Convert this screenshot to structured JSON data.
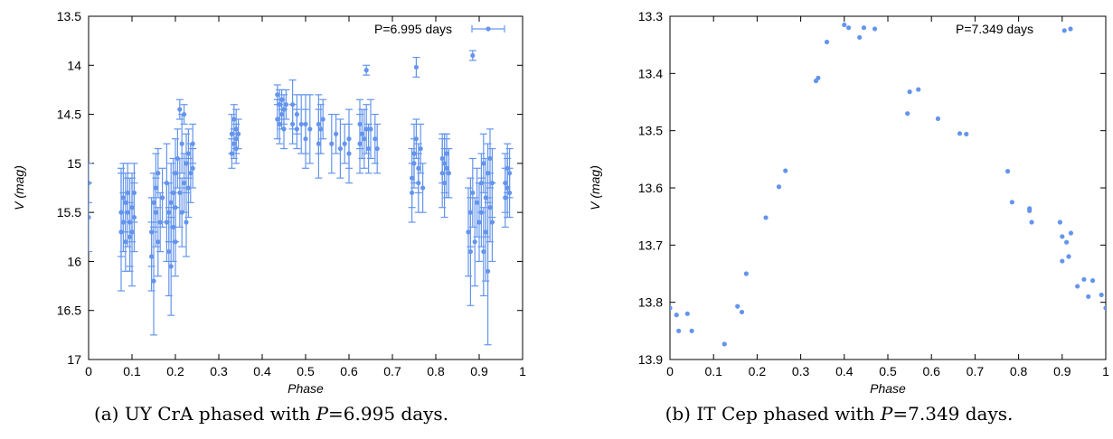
{
  "colors": {
    "series": "#6495ed",
    "axis": "#000000",
    "background": "#ffffff"
  },
  "chart_data": [
    {
      "type": "scatter",
      "panel": "a",
      "xlabel": "Phase",
      "ylabel": "V (mag)",
      "xlim": [
        0,
        1
      ],
      "ylim": [
        13.5,
        17
      ],
      "y_inverted": true,
      "xticks": [
        "0",
        "0.1",
        "0.2",
        "0.3",
        "0.4",
        "0.5",
        "0.6",
        "0.7",
        "0.8",
        "0.9",
        "1"
      ],
      "yticks": [
        "13.5",
        "14",
        "14.5",
        "15",
        "15.5",
        "16",
        "16.5",
        "17"
      ],
      "legend": {
        "label": "P=6.995 days",
        "position": "top-right"
      },
      "caption": {
        "prefix": "(a) UY CrA phased with ",
        "var": "P",
        "suffix": "=6.995 days."
      },
      "series": [
        {
          "name": "P=6.995 days",
          "points": [
            [
              0.0,
              15.55,
              0.35
            ],
            [
              0.0,
              15.2,
              0.2
            ],
            [
              0.075,
              15.5,
              0.45
            ],
            [
              0.075,
              15.7,
              0.6
            ],
            [
              0.08,
              15.35,
              0.35
            ],
            [
              0.08,
              15.6,
              0.3
            ],
            [
              0.085,
              15.4,
              0.3
            ],
            [
              0.085,
              15.8,
              0.3
            ],
            [
              0.09,
              15.5,
              0.35
            ],
            [
              0.09,
              15.3,
              0.3
            ],
            [
              0.095,
              15.6,
              0.45
            ],
            [
              0.095,
              15.75,
              0.35
            ],
            [
              0.1,
              15.45,
              0.35
            ],
            [
              0.1,
              15.7,
              0.55
            ],
            [
              0.105,
              15.55,
              0.35
            ],
            [
              0.105,
              15.3,
              0.3
            ],
            [
              0.145,
              15.95,
              0.35
            ],
            [
              0.145,
              15.7,
              0.35
            ],
            [
              0.15,
              15.4,
              0.3
            ],
            [
              0.15,
              16.2,
              0.55
            ],
            [
              0.155,
              15.5,
              0.35
            ],
            [
              0.155,
              15.25,
              0.35
            ],
            [
              0.16,
              15.8,
              0.35
            ],
            [
              0.16,
              15.1,
              0.25
            ],
            [
              0.165,
              15.6,
              0.3
            ],
            [
              0.17,
              15.35,
              0.3
            ],
            [
              0.18,
              15.6,
              0.4
            ],
            [
              0.18,
              15.2,
              0.4
            ],
            [
              0.185,
              15.9,
              0.45
            ],
            [
              0.185,
              15.5,
              0.3
            ],
            [
              0.19,
              15.4,
              0.4
            ],
            [
              0.19,
              16.05,
              0.5
            ],
            [
              0.195,
              15.65,
              0.35
            ],
            [
              0.195,
              15.3,
              0.35
            ],
            [
              0.2,
              15.1,
              0.35
            ],
            [
              0.2,
              15.8,
              0.35
            ],
            [
              0.2,
              15.45,
              0.35
            ],
            [
              0.205,
              14.95,
              0.3
            ],
            [
              0.21,
              14.45,
              0.1
            ],
            [
              0.21,
              15.3,
              0.35
            ],
            [
              0.215,
              14.8,
              0.3
            ],
            [
              0.215,
              15.5,
              0.35
            ],
            [
              0.22,
              14.5,
              0.1
            ],
            [
              0.22,
              15.2,
              0.3
            ],
            [
              0.225,
              15.6,
              0.35
            ],
            [
              0.225,
              15.0,
              0.3
            ],
            [
              0.23,
              15.25,
              0.3
            ],
            [
              0.23,
              14.9,
              0.25
            ],
            [
              0.235,
              15.1,
              0.3
            ],
            [
              0.24,
              14.8,
              0.2
            ],
            [
              0.24,
              15.05,
              0.2
            ],
            [
              0.33,
              14.7,
              0.2
            ],
            [
              0.33,
              14.9,
              0.15
            ],
            [
              0.335,
              14.55,
              0.15
            ],
            [
              0.335,
              14.8,
              0.15
            ],
            [
              0.34,
              14.65,
              0.2
            ],
            [
              0.34,
              14.75,
              0.15
            ],
            [
              0.34,
              14.85,
              0.15
            ],
            [
              0.345,
              14.7,
              0.15
            ],
            [
              0.435,
              14.3,
              0.1
            ],
            [
              0.435,
              14.55,
              0.2
            ],
            [
              0.44,
              14.4,
              0.15
            ],
            [
              0.44,
              14.6,
              0.2
            ],
            [
              0.445,
              14.35,
              0.1
            ],
            [
              0.445,
              14.5,
              0.15
            ],
            [
              0.45,
              14.45,
              0.15
            ],
            [
              0.45,
              14.65,
              0.2
            ],
            [
              0.455,
              14.4,
              0.15
            ],
            [
              0.47,
              14.4,
              0.25
            ],
            [
              0.47,
              14.6,
              0.2
            ],
            [
              0.48,
              14.5,
              0.2
            ],
            [
              0.48,
              14.65,
              0.2
            ],
            [
              0.49,
              14.6,
              0.3
            ],
            [
              0.5,
              14.75,
              0.3
            ],
            [
              0.5,
              14.6,
              0.3
            ],
            [
              0.51,
              14.65,
              0.35
            ],
            [
              0.53,
              14.6,
              0.3
            ],
            [
              0.53,
              14.8,
              0.35
            ],
            [
              0.535,
              14.65,
              0.25
            ],
            [
              0.54,
              14.55,
              0.2
            ],
            [
              0.56,
              14.8,
              0.3
            ],
            [
              0.57,
              14.7,
              0.2
            ],
            [
              0.58,
              14.85,
              0.3
            ],
            [
              0.59,
              14.8,
              0.2
            ],
            [
              0.6,
              14.75,
              0.3
            ],
            [
              0.6,
              14.9,
              0.3
            ],
            [
              0.625,
              14.6,
              0.25
            ],
            [
              0.625,
              14.8,
              0.3
            ],
            [
              0.63,
              14.7,
              0.25
            ],
            [
              0.635,
              14.75,
              0.3
            ],
            [
              0.64,
              14.65,
              0.25
            ],
            [
              0.64,
              14.05,
              0.05
            ],
            [
              0.645,
              14.85,
              0.25
            ],
            [
              0.65,
              14.65,
              0.3
            ],
            [
              0.66,
              14.75,
              0.25
            ],
            [
              0.665,
              14.85,
              0.25
            ],
            [
              0.745,
              15.15,
              0.3
            ],
            [
              0.745,
              15.3,
              0.3
            ],
            [
              0.75,
              14.9,
              0.3
            ],
            [
              0.75,
              15.0,
              0.25
            ],
            [
              0.755,
              14.75,
              0.2
            ],
            [
              0.755,
              14.02,
              0.1
            ],
            [
              0.76,
              15.2,
              0.3
            ],
            [
              0.76,
              15.05,
              0.25
            ],
            [
              0.765,
              14.85,
              0.25
            ],
            [
              0.77,
              15.25,
              0.25
            ],
            [
              0.815,
              15.1,
              0.35
            ],
            [
              0.815,
              14.95,
              0.25
            ],
            [
              0.82,
              15.2,
              0.35
            ],
            [
              0.82,
              15.0,
              0.3
            ],
            [
              0.825,
              14.9,
              0.2
            ],
            [
              0.825,
              15.05,
              0.3
            ],
            [
              0.83,
              15.1,
              0.25
            ],
            [
              0.875,
              15.7,
              0.45
            ],
            [
              0.88,
              15.9,
              0.55
            ],
            [
              0.88,
              15.5,
              0.35
            ],
            [
              0.885,
              15.3,
              0.35
            ],
            [
              0.885,
              13.9,
              0.05
            ],
            [
              0.89,
              15.8,
              0.45
            ],
            [
              0.895,
              15.4,
              0.35
            ],
            [
              0.9,
              15.6,
              0.4
            ],
            [
              0.905,
              15.2,
              0.3
            ],
            [
              0.905,
              15.5,
              0.35
            ],
            [
              0.91,
              15.0,
              0.3
            ],
            [
              0.91,
              15.9,
              0.45
            ],
            [
              0.915,
              15.35,
              0.4
            ],
            [
              0.915,
              15.7,
              0.5
            ],
            [
              0.92,
              15.1,
              0.3
            ],
            [
              0.92,
              16.1,
              0.75
            ],
            [
              0.925,
              15.45,
              0.35
            ],
            [
              0.925,
              14.95,
              0.3
            ],
            [
              0.93,
              15.2,
              0.35
            ],
            [
              0.93,
              15.6,
              0.4
            ],
            [
              0.96,
              15.2,
              0.3
            ],
            [
              0.96,
              15.35,
              0.3
            ],
            [
              0.965,
              15.05,
              0.25
            ],
            [
              0.965,
              15.25,
              0.3
            ],
            [
              0.97,
              15.1,
              0.25
            ],
            [
              0.97,
              15.3,
              0.25
            ]
          ]
        }
      ]
    },
    {
      "type": "scatter",
      "panel": "b",
      "xlabel": "Phase",
      "ylabel": "V (mag)",
      "xlim": [
        0,
        1
      ],
      "ylim": [
        13.3,
        13.9
      ],
      "y_inverted": true,
      "xticks": [
        "0",
        "0.1",
        "0.2",
        "0.3",
        "0.4",
        "0.5",
        "0.6",
        "0.7",
        "0.8",
        "0.9",
        "1"
      ],
      "yticks": [
        "13.3",
        "13.4",
        "13.5",
        "13.6",
        "13.7",
        "13.8",
        "13.9"
      ],
      "legend": {
        "label": "P=7.349 days",
        "position": "top-right"
      },
      "caption": {
        "prefix": "(b) IT Cep phased with ",
        "var": "P",
        "suffix": "=7.349 days."
      },
      "series": [
        {
          "name": "P=7.349 days",
          "points": [
            [
              0.0,
              13.81
            ],
            [
              0.015,
              13.822
            ],
            [
              0.02,
              13.85
            ],
            [
              0.04,
              13.82
            ],
            [
              0.05,
              13.85
            ],
            [
              0.125,
              13.873
            ],
            [
              0.155,
              13.807
            ],
            [
              0.165,
              13.817
            ],
            [
              0.175,
              13.75
            ],
            [
              0.22,
              13.652
            ],
            [
              0.25,
              13.598
            ],
            [
              0.265,
              13.57
            ],
            [
              0.335,
              13.413
            ],
            [
              0.34,
              13.408
            ],
            [
              0.36,
              13.345
            ],
            [
              0.4,
              13.315
            ],
            [
              0.41,
              13.32
            ],
            [
              0.435,
              13.337
            ],
            [
              0.445,
              13.32
            ],
            [
              0.47,
              13.322
            ],
            [
              0.545,
              13.47
            ],
            [
              0.55,
              13.432
            ],
            [
              0.57,
              13.428
            ],
            [
              0.615,
              13.479
            ],
            [
              0.665,
              13.505
            ],
            [
              0.68,
              13.506
            ],
            [
              0.775,
              13.571
            ],
            [
              0.785,
              13.625
            ],
            [
              0.825,
              13.64
            ],
            [
              0.825,
              13.636
            ],
            [
              0.83,
              13.66
            ],
            [
              0.895,
              13.66
            ],
            [
              0.9,
              13.728
            ],
            [
              0.9,
              13.685
            ],
            [
              0.905,
              13.325
            ],
            [
              0.91,
              13.695
            ],
            [
              0.915,
              13.72
            ],
            [
              0.92,
              13.679
            ],
            [
              0.935,
              13.772
            ],
            [
              0.95,
              13.76
            ],
            [
              0.96,
              13.79
            ],
            [
              0.97,
              13.762
            ],
            [
              0.99,
              13.787
            ],
            [
              1.0,
              13.81
            ]
          ]
        }
      ]
    }
  ]
}
